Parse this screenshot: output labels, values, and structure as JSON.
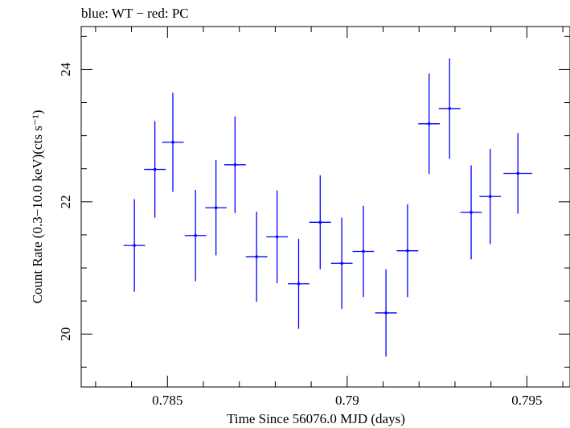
{
  "chart_data": {
    "type": "scatter",
    "title": "blue: WT − red: PC",
    "xlabel": "Time Since 56076.0 MJD (days)",
    "ylabel": "Count Rate (0.3−10.0 keV)(cts s⁻¹)",
    "xlim": [
      0.7826,
      0.7962
    ],
    "ylim": [
      19.2,
      24.65
    ],
    "x_ticks": [
      0.785,
      0.79,
      0.795
    ],
    "x_tick_labels": [
      "0.785",
      "0.79",
      "0.795"
    ],
    "y_ticks": [
      20,
      22,
      24
    ],
    "y_tick_labels": [
      "20",
      "22",
      "24"
    ],
    "grid": false,
    "series": [
      {
        "name": "WT",
        "color": "#0000ff",
        "points": [
          {
            "x": 0.78408,
            "y": 21.34,
            "xerr": 0.0003,
            "yerr": 0.7
          },
          {
            "x": 0.78465,
            "y": 22.49,
            "xerr": 0.0003,
            "yerr": 0.73
          },
          {
            "x": 0.78515,
            "y": 22.9,
            "xerr": 0.0003,
            "yerr": 0.75
          },
          {
            "x": 0.78578,
            "y": 21.49,
            "xerr": 0.0003,
            "yerr": 0.69
          },
          {
            "x": 0.78635,
            "y": 21.91,
            "xerr": 0.0003,
            "yerr": 0.72
          },
          {
            "x": 0.78688,
            "y": 22.56,
            "xerr": 0.0003,
            "yerr": 0.73
          },
          {
            "x": 0.78748,
            "y": 21.17,
            "xerr": 0.0003,
            "yerr": 0.68
          },
          {
            "x": 0.78805,
            "y": 21.47,
            "xerr": 0.0003,
            "yerr": 0.7
          },
          {
            "x": 0.78865,
            "y": 20.76,
            "xerr": 0.0003,
            "yerr": 0.68
          },
          {
            "x": 0.78925,
            "y": 21.69,
            "xerr": 0.0003,
            "yerr": 0.71
          },
          {
            "x": 0.78985,
            "y": 21.07,
            "xerr": 0.0003,
            "yerr": 0.69
          },
          {
            "x": 0.79045,
            "y": 21.25,
            "xerr": 0.0003,
            "yerr": 0.69
          },
          {
            "x": 0.79108,
            "y": 20.32,
            "xerr": 0.0003,
            "yerr": 0.66
          },
          {
            "x": 0.79168,
            "y": 21.26,
            "xerr": 0.0003,
            "yerr": 0.7
          },
          {
            "x": 0.79228,
            "y": 23.18,
            "xerr": 0.0003,
            "yerr": 0.76
          },
          {
            "x": 0.79285,
            "y": 23.41,
            "xerr": 0.0003,
            "yerr": 0.76
          },
          {
            "x": 0.79345,
            "y": 21.84,
            "xerr": 0.0003,
            "yerr": 0.71
          },
          {
            "x": 0.79398,
            "y": 22.08,
            "xerr": 0.0003,
            "yerr": 0.72
          },
          {
            "x": 0.79475,
            "y": 22.43,
            "xerr": 0.0004,
            "yerr": 0.61
          }
        ]
      }
    ]
  }
}
